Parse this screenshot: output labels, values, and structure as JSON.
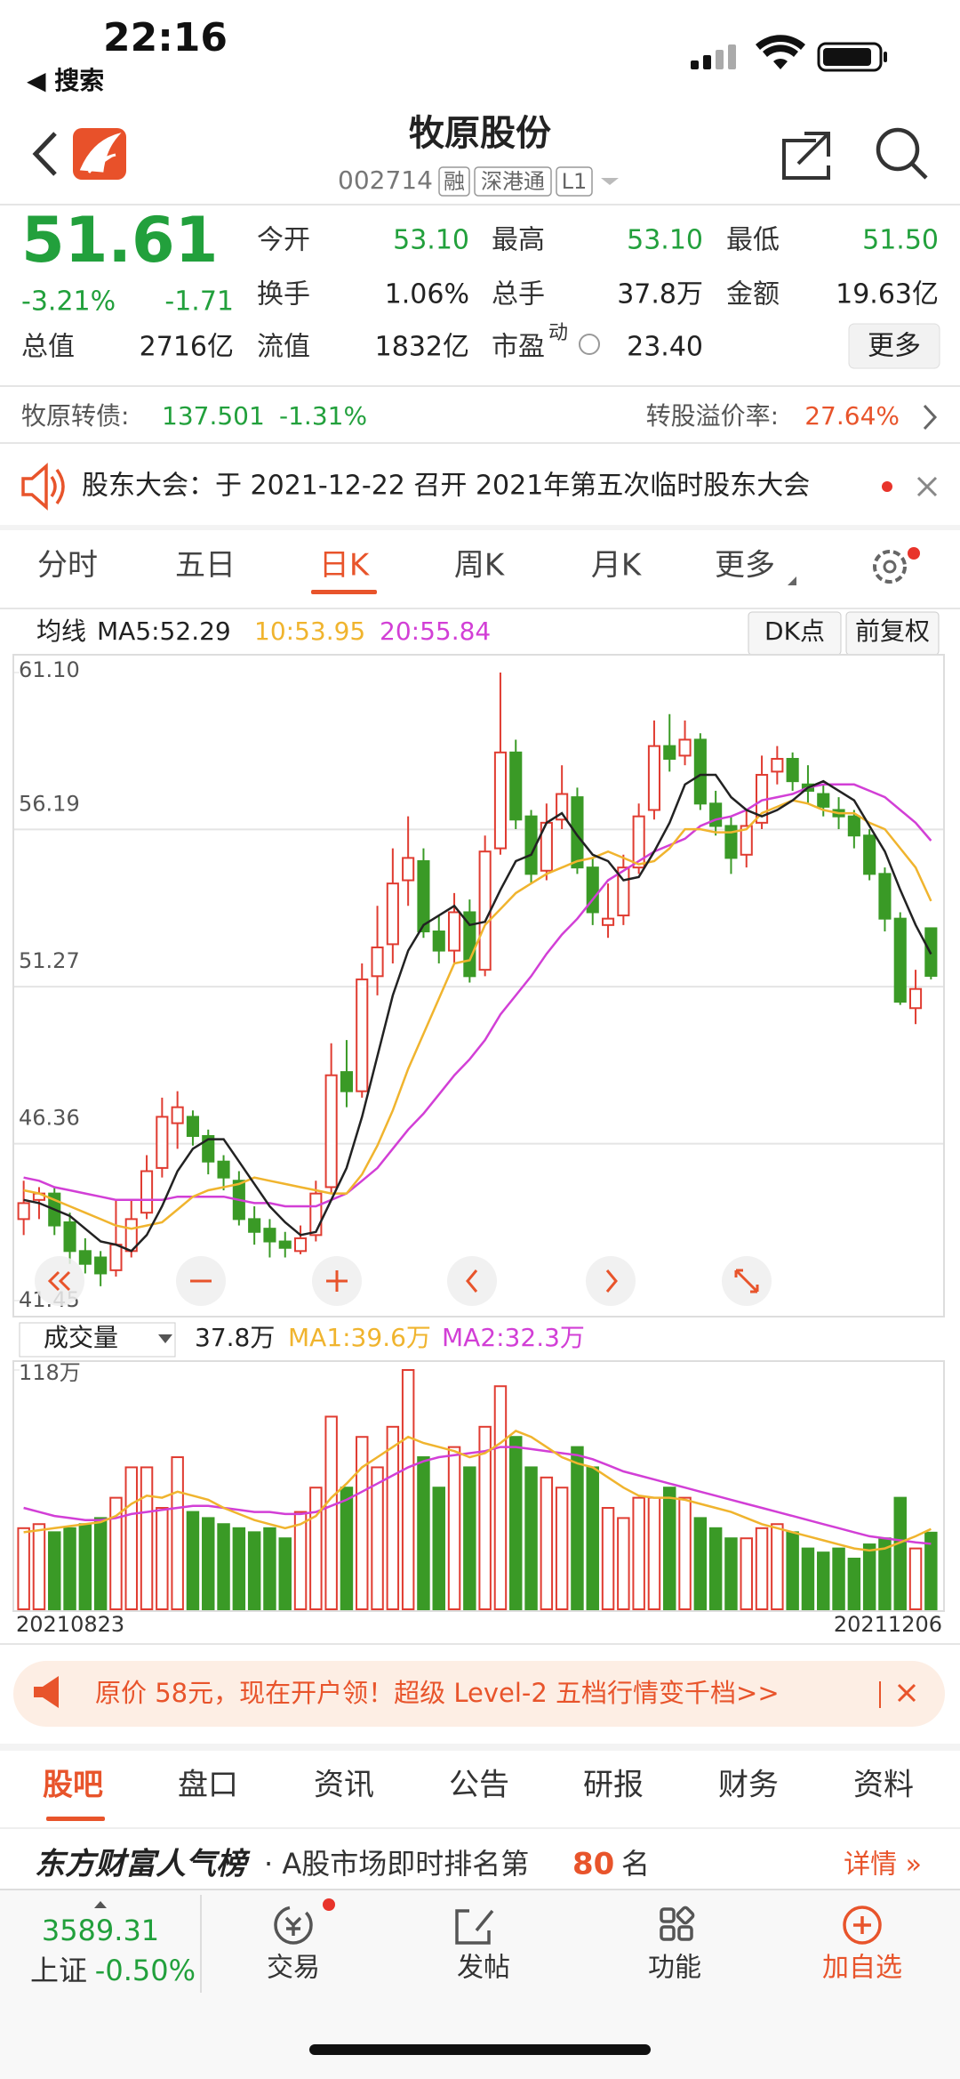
{
  "status": {
    "time": "22:16",
    "back": "◀ 搜索"
  },
  "header": {
    "title": "牧原股份",
    "code": "002714",
    "tags": [
      "融",
      "深港通",
      "L1"
    ]
  },
  "quote": {
    "price": "51.61",
    "change_pct": "-3.21%",
    "change": "-1.71",
    "fields": [
      {
        "label": "今开",
        "value": "53.10"
      },
      {
        "label": "最高",
        "value": "53.10"
      },
      {
        "label": "最低",
        "value": "51.50"
      },
      {
        "label": "换手",
        "value": "1.06%"
      },
      {
        "label": "总手",
        "value": "37.8万"
      },
      {
        "label": "金额",
        "value": "19.63亿"
      },
      {
        "label": "总值",
        "value": "2716亿"
      },
      {
        "label": "流值",
        "value": "1832亿"
      },
      {
        "label": "市盈",
        "sup": "动",
        "value": "23.40"
      }
    ],
    "more": "更多"
  },
  "bond": {
    "name": "牧原转债:",
    "price": "137.501",
    "pct": "-1.31%",
    "premium_label": "转股溢价率:",
    "premium": "27.64%"
  },
  "notice": "股东大会：于 2021-12-22 召开 2021年第五次临时股东大会",
  "tabs": [
    "分时",
    "五日",
    "日K",
    "周K",
    "月K",
    "更多"
  ],
  "kline": {
    "ma_title": "均线",
    "ma_labels": [
      "MA5:52.29",
      "10:53.95",
      "20:55.84"
    ],
    "buttons": [
      "DK点",
      "前复权"
    ],
    "colors": {
      "up": "#e03c31",
      "down": "#3a9a26",
      "ma5": "#222222",
      "ma10": "#f0b42e",
      "ma20": "#d23fd6"
    },
    "ylim": [
      41.45,
      61.1
    ],
    "yticks": [
      {
        "value": 61.1,
        "label": "61.10"
      },
      56.19,
      51.27,
      46.36,
      41.45
    ],
    "candles": [
      [
        44.0,
        45.2,
        43.5,
        44.5
      ],
      [
        44.6,
        45.0,
        44.0,
        44.8
      ],
      [
        44.8,
        45.0,
        43.5,
        43.8
      ],
      [
        43.9,
        44.2,
        42.6,
        43.0
      ],
      [
        43.0,
        43.4,
        42.3,
        42.6
      ],
      [
        42.8,
        43.0,
        41.9,
        42.3
      ],
      [
        42.4,
        44.6,
        42.2,
        43.2
      ],
      [
        43.0,
        44.6,
        42.8,
        44.0
      ],
      [
        44.2,
        46.0,
        44.0,
        45.5
      ],
      [
        45.6,
        47.8,
        45.3,
        47.2
      ],
      [
        47.0,
        48.0,
        46.2,
        47.5
      ],
      [
        47.2,
        47.4,
        46.3,
        46.6
      ],
      [
        46.6,
        46.8,
        45.4,
        45.8
      ],
      [
        45.8,
        46.0,
        44.9,
        45.3
      ],
      [
        45.2,
        45.5,
        43.8,
        44.0
      ],
      [
        44.0,
        44.4,
        43.2,
        43.6
      ],
      [
        43.7,
        44.0,
        42.8,
        43.3
      ],
      [
        43.3,
        43.6,
        42.8,
        43.1
      ],
      [
        43.0,
        43.8,
        42.9,
        43.4
      ],
      [
        43.5,
        45.2,
        43.3,
        44.8
      ],
      [
        45.0,
        49.5,
        44.8,
        48.5
      ],
      [
        48.6,
        49.6,
        47.5,
        48.0
      ],
      [
        48.0,
        52.0,
        47.8,
        51.5
      ],
      [
        51.6,
        53.8,
        51.0,
        52.5
      ],
      [
        52.6,
        55.6,
        52.0,
        54.5
      ],
      [
        54.6,
        56.6,
        53.8,
        55.3
      ],
      [
        55.2,
        55.6,
        52.8,
        53.0
      ],
      [
        53.0,
        53.5,
        52.0,
        52.4
      ],
      [
        52.4,
        54.2,
        52.0,
        53.6
      ],
      [
        53.6,
        54.0,
        51.4,
        51.6
      ],
      [
        51.8,
        56.0,
        51.6,
        55.5
      ],
      [
        55.6,
        61.1,
        55.4,
        58.6
      ],
      [
        58.6,
        59.0,
        56.2,
        56.5
      ],
      [
        56.6,
        56.8,
        54.5,
        54.8
      ],
      [
        54.9,
        57.0,
        54.6,
        56.4
      ],
      [
        56.5,
        58.2,
        56.2,
        57.3
      ],
      [
        57.2,
        57.5,
        54.8,
        55.0
      ],
      [
        55.0,
        55.3,
        53.2,
        53.6
      ],
      [
        53.2,
        54.5,
        52.8,
        53.4
      ],
      [
        53.5,
        55.4,
        53.2,
        55.0
      ],
      [
        55.0,
        57.0,
        54.8,
        56.6
      ],
      [
        56.8,
        59.6,
        56.5,
        58.8
      ],
      [
        58.8,
        59.8,
        58.0,
        58.4
      ],
      [
        58.5,
        59.6,
        58.2,
        59.0
      ],
      [
        59.0,
        59.2,
        56.8,
        57.0
      ],
      [
        57.0,
        57.4,
        56.0,
        56.3
      ],
      [
        56.3,
        56.6,
        54.8,
        55.3
      ],
      [
        55.4,
        56.8,
        55.0,
        56.3
      ],
      [
        56.4,
        58.5,
        56.2,
        57.9
      ],
      [
        58.0,
        58.8,
        57.6,
        58.4
      ],
      [
        58.4,
        58.6,
        57.4,
        57.7
      ],
      [
        57.6,
        58.2,
        57.0,
        57.4
      ],
      [
        57.3,
        57.6,
        56.6,
        56.9
      ],
      [
        56.8,
        57.2,
        56.2,
        56.6
      ],
      [
        56.6,
        56.8,
        55.6,
        56.0
      ],
      [
        56.0,
        56.2,
        54.6,
        54.8
      ],
      [
        54.8,
        55.0,
        53.0,
        53.4
      ],
      [
        53.4,
        53.6,
        50.7,
        50.8
      ],
      [
        50.6,
        51.8,
        50.1,
        51.2
      ],
      [
        53.1,
        53.1,
        51.5,
        51.61
      ]
    ],
    "ma5": [
      44.6,
      44.5,
      44.3,
      44.1,
      43.7,
      43.3,
      43.2,
      43.0,
      43.5,
      44.4,
      45.5,
      46.2,
      46.5,
      46.5,
      45.8,
      45.1,
      44.4,
      43.9,
      43.5,
      43.6,
      44.6,
      45.6,
      47.2,
      49.1,
      51.0,
      52.4,
      53.2,
      53.5,
      53.8,
      53.2,
      53.3,
      54.3,
      55.2,
      55.4,
      56.4,
      56.7,
      56.0,
      55.4,
      55.2,
      54.6,
      54.7,
      55.5,
      56.4,
      57.6,
      57.9,
      57.9,
      57.2,
      56.8,
      56.6,
      56.8,
      57.1,
      57.5,
      57.7,
      57.4,
      57.1,
      56.3,
      55.5,
      54.3,
      53.2,
      52.29
    ],
    "ma10": [
      44.9,
      44.8,
      44.6,
      44.4,
      44.2,
      44.0,
      43.8,
      43.7,
      43.8,
      43.9,
      44.3,
      44.7,
      44.9,
      45.0,
      45.1,
      45.3,
      45.2,
      45.1,
      45.0,
      44.9,
      44.8,
      44.8,
      45.4,
      46.3,
      47.4,
      48.7,
      49.8,
      50.9,
      52.0,
      52.1,
      53.2,
      53.7,
      54.2,
      54.5,
      54.8,
      55.0,
      55.2,
      55.3,
      55.5,
      55.3,
      55.1,
      55.2,
      55.6,
      56.2,
      56.2,
      56.1,
      56.1,
      56.2,
      56.7,
      56.9,
      57.1,
      57.0,
      56.8,
      56.7,
      56.7,
      56.4,
      56.2,
      55.6,
      55.0,
      53.95
    ],
    "ma20": [
      45.3,
      45.2,
      45.0,
      44.9,
      44.8,
      44.7,
      44.6,
      44.6,
      44.6,
      44.6,
      44.7,
      44.7,
      44.7,
      44.7,
      44.6,
      44.5,
      44.5,
      44.4,
      44.4,
      44.4,
      44.6,
      44.8,
      45.2,
      45.6,
      46.2,
      46.8,
      47.3,
      47.9,
      48.5,
      49.0,
      49.6,
      50.4,
      51.0,
      51.6,
      52.3,
      52.9,
      53.4,
      54.0,
      54.6,
      54.9,
      55.2,
      55.5,
      55.7,
      55.9,
      56.3,
      56.5,
      56.6,
      56.8,
      57.1,
      57.2,
      57.3,
      57.5,
      57.6,
      57.6,
      57.6,
      57.4,
      57.2,
      56.8,
      56.4,
      55.84
    ]
  },
  "volume": {
    "selector": "成交量",
    "current": "37.8万",
    "ma_labels": [
      "MA1:39.6万",
      "MA2:32.3万"
    ],
    "ylim": [
      0,
      118
    ],
    "yticks": [
      {
        "value": 118,
        "label": "118万"
      }
    ],
    "values": [
      40,
      42,
      38,
      40,
      42,
      45,
      55,
      70,
      70,
      50,
      75,
      48,
      45,
      42,
      40,
      38,
      40,
      35,
      48,
      60,
      95,
      60,
      85,
      70,
      90,
      118,
      75,
      60,
      80,
      70,
      90,
      110,
      85,
      70,
      65,
      60,
      80,
      70,
      50,
      45,
      55,
      55,
      60,
      55,
      45,
      40,
      35,
      35,
      40,
      42,
      38,
      30,
      28,
      30,
      25,
      32,
      35,
      55,
      30,
      37.8
    ],
    "ma1": [
      38,
      39,
      40,
      41,
      42,
      43,
      46,
      52,
      56,
      55,
      58,
      56,
      54,
      50,
      47,
      44,
      42,
      40,
      42,
      46,
      55,
      62,
      70,
      75,
      80,
      85,
      82,
      80,
      78,
      75,
      77,
      82,
      88,
      85,
      80,
      75,
      72,
      70,
      65,
      60,
      56,
      55,
      55,
      54,
      52,
      50,
      48,
      45,
      42,
      40,
      38,
      36,
      34,
      32,
      30,
      29,
      30,
      33,
      36,
      39.6
    ],
    "ma2": [
      50,
      48,
      46,
      45,
      44,
      44,
      45,
      47,
      48,
      49,
      50,
      51,
      51,
      50,
      49,
      48,
      48,
      47,
      47,
      48,
      51,
      54,
      58,
      62,
      66,
      70,
      73,
      75,
      76,
      77,
      78,
      80,
      80,
      79,
      78,
      77,
      76,
      74,
      71,
      68,
      66,
      64,
      62,
      60,
      58,
      56,
      54,
      52,
      50,
      48,
      46,
      44,
      42,
      40,
      38,
      36,
      35,
      34,
      33,
      32.3
    ],
    "dates": [
      "20210823",
      "20211206"
    ]
  },
  "ad": "原价 58元，现在开户领！超级 Level-2 五档行情变千档>>",
  "sub_tabs": [
    "股吧",
    "盘口",
    "资讯",
    "公告",
    "研报",
    "财务",
    "资料"
  ],
  "rank": {
    "brand": "东方财富人气榜",
    "text": "· A股市场即时排名第",
    "rank": "80",
    "unit": "名",
    "detail": "详情 »"
  },
  "bottom_nav": {
    "index_value": "3589.31",
    "index_name": "上证",
    "index_pct": "-0.50%",
    "items": [
      "交易",
      "发帖",
      "功能",
      "加自选"
    ]
  }
}
